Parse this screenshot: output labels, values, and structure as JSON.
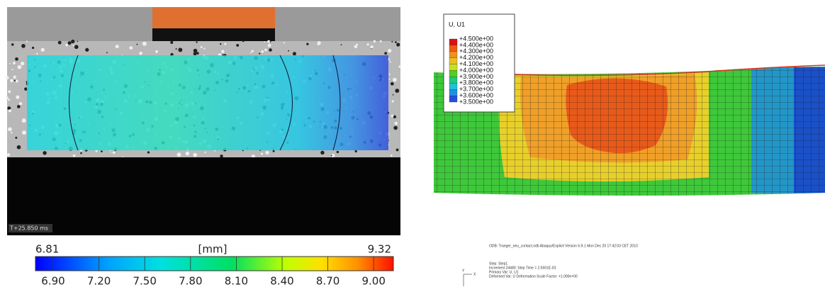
{
  "left_panel": {
    "timestamp": "T+25.850 ms",
    "colorbar": {
      "min_label": "6.81",
      "unit": "[mm]",
      "max_label": "9.32",
      "ticks": [
        "6.90",
        "7.20",
        "7.50",
        "7.80",
        "8.10",
        "8.40",
        "8.70",
        "9.00"
      ]
    }
  },
  "right_panel": {
    "legend": {
      "title": "U, U1",
      "levels": [
        "+4.500e+00",
        "+4.400e+00",
        "+4.300e+00",
        "+4.200e+00",
        "+4.100e+00",
        "+4.000e+00",
        "+3.900e+00",
        "+3.800e+00",
        "+3.700e+00",
        "+3.600e+00",
        "+3.500e+00"
      ]
    },
    "info": {
      "odb": "ODB: Traeger_neu_contact.odb    Abaqus/Explicit Version 6.9-1    Mon Dec 20 17:42:03 CET 2010",
      "step": "Step: Step1",
      "increment": "Increment    24480: Step Time =    2.5501E-03",
      "primary": "Primary Var: U, U1",
      "deformed": "Deformed Var: U   Deformation Scale Factor: +1.000e+00"
    },
    "triad": [
      "Y",
      "X"
    ]
  }
}
